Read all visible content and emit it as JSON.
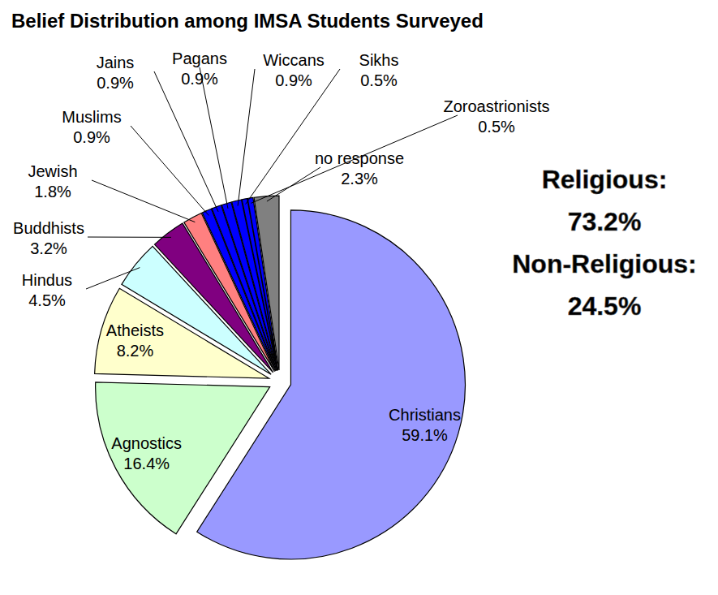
{
  "chart_data": {
    "type": "pie",
    "title": "Belief Distribution among IMSA Students Surveyed",
    "categories": [
      "Christians",
      "Agnostics",
      "Atheists",
      "Hindus",
      "Buddhists",
      "Jewish",
      "Muslims",
      "Jains",
      "Pagans",
      "Wiccans",
      "Sikhs",
      "Zoroastrionists",
      "no response"
    ],
    "values": [
      59.1,
      16.4,
      8.2,
      4.5,
      3.2,
      1.8,
      0.9,
      0.9,
      0.9,
      0.9,
      0.5,
      0.5,
      2.3
    ],
    "value_labels": [
      "59.1%",
      "16.4%",
      "8.2%",
      "4.5%",
      "3.2%",
      "1.8%",
      "0.9%",
      "0.9%",
      "0.9%",
      "0.9%",
      "0.5%",
      "0.5%",
      "2.3%"
    ],
    "colors": [
      "#9999ff",
      "#ccffcc",
      "#ffffcc",
      "#ccffff",
      "#800080",
      "#ff8080",
      "#0000ff",
      "#0000ff",
      "#0000ff",
      "#0000ff",
      "#0000ff",
      "#0000ff",
      "#808080"
    ],
    "data_labels": true,
    "annotations": [
      "Religious:",
      "73.2%",
      "Non-Religious:",
      "24.5%"
    ]
  }
}
